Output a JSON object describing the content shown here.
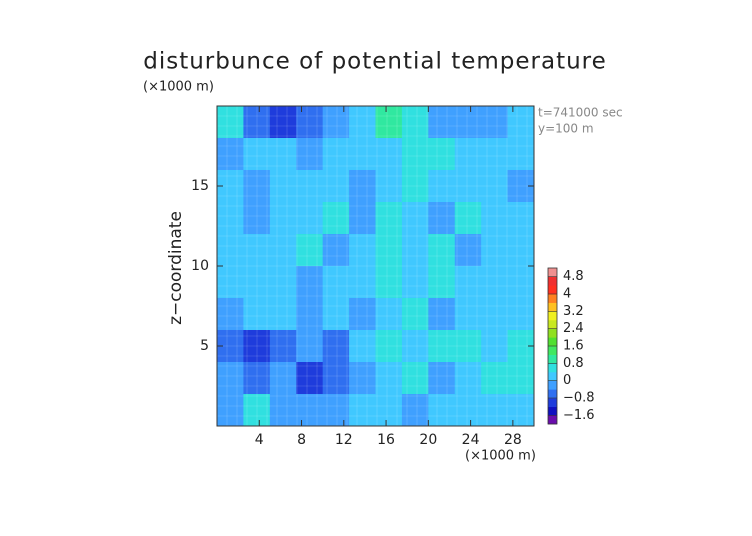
{
  "chart_data": {
    "type": "contour",
    "title": "disturbunce of potential temperature",
    "y_unit": "(×1000 m)",
    "x_unit": "(×1000 m)",
    "ylabel": "z−coordinate",
    "annotations": [
      "t=741000 sec",
      "y=100 m"
    ],
    "xlim": [
      0,
      30
    ],
    "ylim": [
      0,
      20
    ],
    "xticks": [
      4,
      8,
      12,
      16,
      20,
      24,
      28
    ],
    "yticks": [
      5,
      10,
      15
    ],
    "z": [
      [
        0.8,
        -0.8,
        -1.0,
        -0.6,
        -0.2,
        0.2,
        1.0,
        0.4,
        -0.4,
        -0.2,
        -0.2,
        0.0
      ],
      [
        -0.2,
        0.2,
        0.2,
        -0.2,
        0.2,
        0.2,
        0.0,
        0.4,
        0.4,
        0.2,
        0.2,
        0.0
      ],
      [
        0.2,
        -0.4,
        0.2,
        0.2,
        0.0,
        -0.4,
        0.2,
        0.4,
        0.2,
        0.2,
        0.0,
        -0.4
      ],
      [
        0.2,
        -0.2,
        0.2,
        0.0,
        0.4,
        -0.2,
        0.4,
        0.2,
        -0.2,
        0.4,
        0.2,
        0.0
      ],
      [
        0.0,
        0.2,
        0.0,
        0.4,
        -0.2,
        0.2,
        0.4,
        0.0,
        0.4,
        -0.2,
        0.2,
        0.2
      ],
      [
        0.2,
        0.0,
        0.2,
        -0.2,
        0.0,
        0.2,
        0.4,
        0.2,
        0.4,
        0.0,
        0.2,
        0.2
      ],
      [
        -0.4,
        0.2,
        0.0,
        -0.4,
        0.2,
        -0.2,
        0.2,
        0.4,
        -0.2,
        0.2,
        0.0,
        0.2
      ],
      [
        -0.8,
        -1.2,
        -0.6,
        -0.4,
        -0.8,
        0.2,
        0.6,
        0.2,
        0.4,
        0.6,
        0.2,
        0.4
      ],
      [
        -0.4,
        -0.6,
        -0.4,
        -1.0,
        -0.6,
        -0.2,
        0.0,
        0.4,
        -0.2,
        0.2,
        0.6,
        0.4
      ],
      [
        -0.2,
        0.4,
        -0.2,
        -0.2,
        -0.4,
        0.0,
        0.2,
        -0.2,
        0.2,
        0.0,
        0.2,
        0.0
      ]
    ],
    "clim": [
      -2.0,
      5.2
    ],
    "colors": [
      "#6a0dad",
      "#1010c0",
      "#1e3cdc",
      "#2f6ff0",
      "#3fa0ff",
      "#40c8ff",
      "#30e0e0",
      "#30e8a0",
      "#40e860",
      "#50e030",
      "#90e020",
      "#c8e820",
      "#f0f020",
      "#ffc020",
      "#ff8020",
      "#ff3020",
      "#f03030",
      "#f09090"
    ],
    "cticks": [
      {
        "value": -1.6,
        "label": "−1.6"
      },
      {
        "value": -0.8,
        "label": "−0.8"
      },
      0,
      0.8,
      1.6,
      2.4,
      3.2,
      4,
      4.8
    ]
  }
}
